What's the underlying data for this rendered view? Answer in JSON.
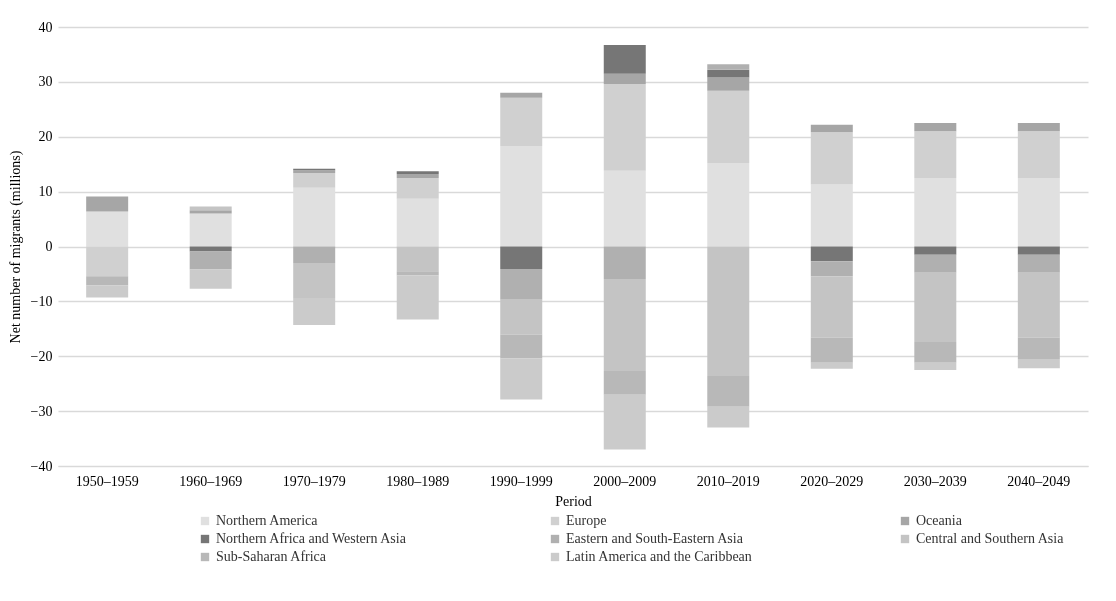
{
  "chart_data": {
    "type": "bar",
    "stacked": true,
    "xlabel": "Period",
    "ylabel": "Net number of  migrants (millions)",
    "categories": [
      "1950–1959",
      "1960–1969",
      "1970–1979",
      "1980–1989",
      "1990–1999",
      "2000–2009",
      "2010–2019",
      "2020–2029",
      "2030–2039",
      "2040–2049"
    ],
    "series": [
      {
        "name": "Northern America",
        "color": "#e0e0e0",
        "values": [
          6.4,
          6.0,
          10.7,
          8.7,
          18.3,
          13.8,
          15.2,
          11.3,
          12.5,
          12.5
        ]
      },
      {
        "name": "Europe",
        "color": "#d0d0d0",
        "values": [
          -5.4,
          null,
          2.7,
          3.8,
          8.8,
          15.8,
          13.2,
          9.5,
          8.5,
          8.5
        ]
      },
      {
        "name": "Oceania",
        "color": "#a6a6a6",
        "values": [
          2.7,
          0.6,
          0.5,
          0.7,
          0.9,
          1.9,
          2.4,
          1.4,
          1.5,
          1.5
        ]
      },
      {
        "name": "Northern Africa and Western Asia",
        "color": "#767676",
        "values": [
          null,
          -0.9,
          0.25,
          0.5,
          -4.1,
          5.2,
          1.4,
          -2.7,
          -1.5,
          -1.5
        ]
      },
      {
        "name": "Eastern and South-Eastern Asia",
        "color": "#b0b0b0",
        "values": [
          null,
          -3.3,
          -3.0,
          null,
          -5.6,
          -5.9,
          1.0,
          -2.7,
          -3.3,
          -3.3
        ]
      },
      {
        "name": "Central and Southern Asia",
        "color": "#c4c4c4",
        "values": [
          null,
          0.7,
          -6.4,
          -4.5,
          -6.4,
          -16.8,
          -23.6,
          -11.2,
          -12.6,
          -11.8
        ]
      },
      {
        "name": "Sub-Saharan Africa",
        "color": "#b8b8b8",
        "values": [
          -1.7,
          null,
          null,
          -0.8,
          -4.3,
          -4.3,
          -5.6,
          -4.6,
          -3.8,
          -3.9
        ]
      },
      {
        "name": "Latin America and the Caribbean",
        "color": "#cbcbcb",
        "values": [
          -2.2,
          -3.5,
          -4.9,
          -8.0,
          -7.5,
          -10.0,
          -3.8,
          -1.1,
          -1.3,
          -1.7
        ]
      }
    ],
    "ylim": [
      -40,
      40
    ],
    "yticks": [
      -40,
      -30,
      -20,
      -10,
      0,
      10,
      20,
      30,
      40
    ],
    "grid": "y",
    "legend": "bottom"
  }
}
